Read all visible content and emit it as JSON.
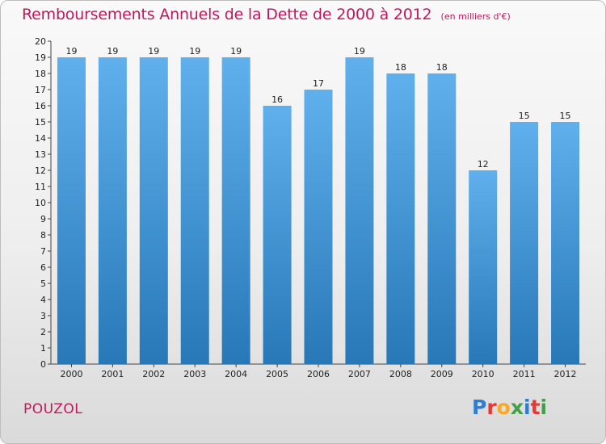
{
  "header": {
    "title": "Remboursements Annuels de la Dette de 2000 à 2012",
    "unit": "(en milliers d'€)"
  },
  "footer": {
    "commune": "POUZOL",
    "brand": "Proxiti",
    "brand_letters": [
      {
        "char": "P",
        "color": "#2e7dd1"
      },
      {
        "char": "r",
        "color": "#e53935"
      },
      {
        "char": "o",
        "color": "#f9a825"
      },
      {
        "char": "x",
        "color": "#43a047"
      },
      {
        "char": "i",
        "color": "#2e7dd1"
      },
      {
        "char": "t",
        "color": "#e53935"
      },
      {
        "char": "i",
        "color": "#43a047"
      }
    ]
  },
  "colors": {
    "title": "#c2185b",
    "bar_top": "#5fb0ec",
    "bar_bottom": "#2878b8"
  },
  "chart_data": {
    "type": "bar",
    "title": "Remboursements Annuels de la Dette de 2000 à 2012",
    "xlabel": "",
    "ylabel": "",
    "ylim": [
      0,
      20
    ],
    "yticks": [
      0,
      1,
      2,
      3,
      4,
      5,
      6,
      7,
      8,
      9,
      10,
      11,
      12,
      13,
      14,
      15,
      16,
      17,
      18,
      19,
      20
    ],
    "grid": false,
    "categories": [
      "2000",
      "2001",
      "2002",
      "2003",
      "2004",
      "2005",
      "2006",
      "2007",
      "2008",
      "2009",
      "2010",
      "2011",
      "2012"
    ],
    "values": [
      19,
      19,
      19,
      19,
      19,
      16,
      17,
      19,
      18,
      18,
      12,
      15,
      15
    ],
    "data_labels": [
      "19",
      "19",
      "19",
      "19",
      "19",
      "16",
      "17",
      "19",
      "18",
      "18",
      "12",
      "15",
      "15"
    ]
  }
}
